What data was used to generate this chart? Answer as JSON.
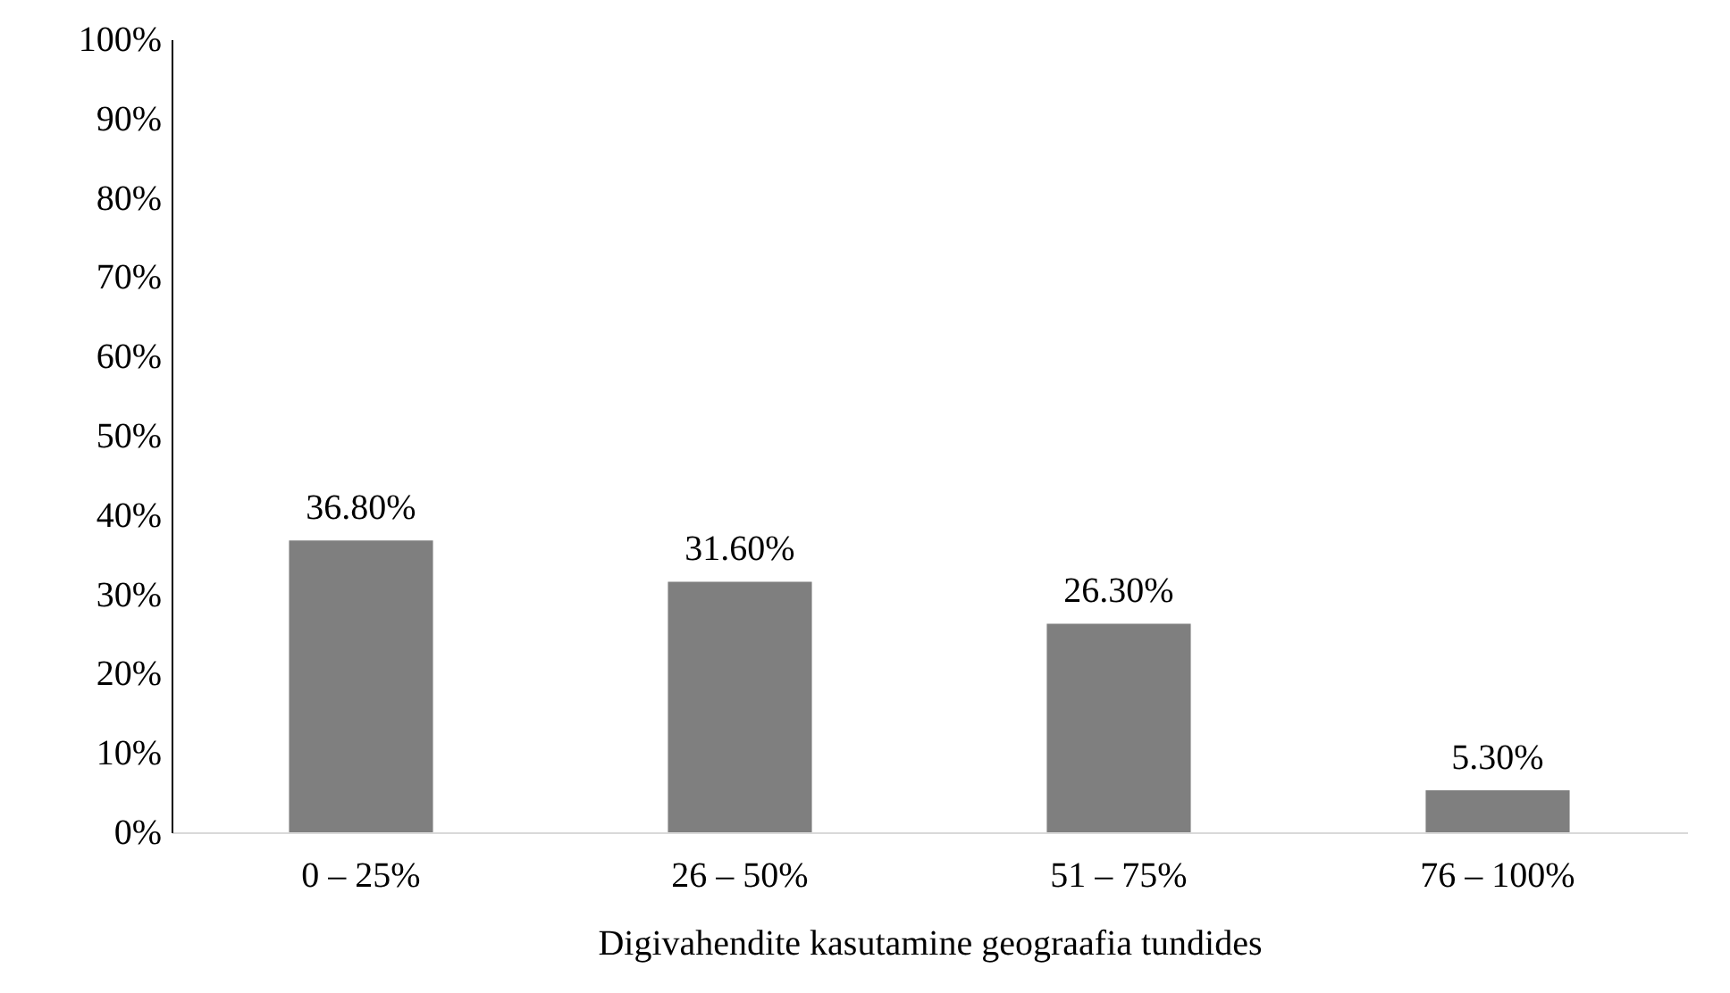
{
  "chart_data": {
    "type": "bar",
    "xlabel": "Digivahendite kasutamine geograafia tundides",
    "categories": [
      "0 – 25%",
      "26 – 50%",
      "51 – 75%",
      "76 – 100%"
    ],
    "values": [
      36.8,
      31.6,
      26.3,
      5.3
    ],
    "color": "#7f7f7f",
    "value_labels": [
      "36.80%",
      "31.60%",
      "26.30%",
      "5.30%"
    ],
    "ylim": [
      0,
      100
    ],
    "yticks": [
      {
        "value": 0,
        "label": "0%"
      },
      {
        "value": 10,
        "label": "10%"
      },
      {
        "value": 20,
        "label": "20%"
      },
      {
        "value": 30,
        "label": "30%"
      },
      {
        "value": 40,
        "label": "40%"
      },
      {
        "value": 50,
        "label": "50%"
      },
      {
        "value": 60,
        "label": "60%"
      },
      {
        "value": 70,
        "label": "70%"
      },
      {
        "value": 80,
        "label": "80%"
      },
      {
        "value": 90,
        "label": "90%"
      },
      {
        "value": 100,
        "label": "100%"
      }
    ],
    "grid": false
  }
}
